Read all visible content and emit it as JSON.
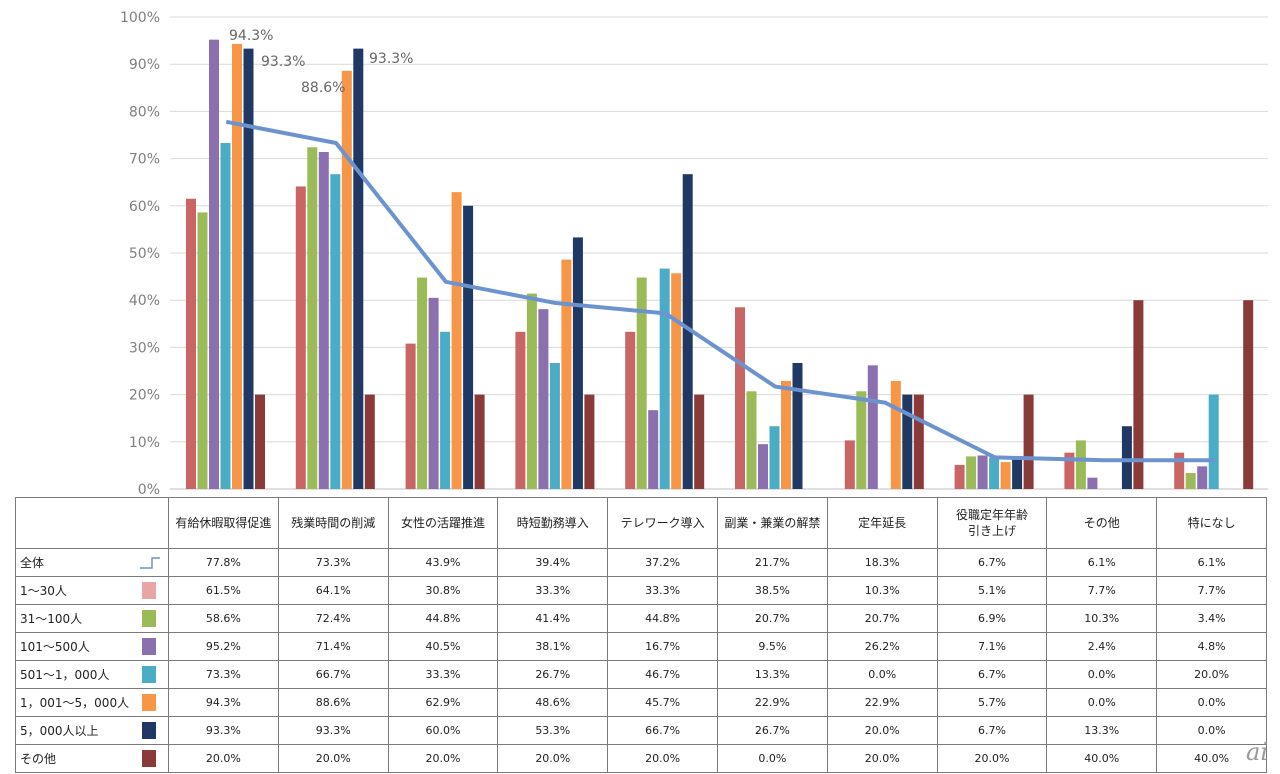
{
  "chart_data": {
    "type": "bar",
    "ylabel": "",
    "ylim": [
      0,
      100
    ],
    "y_ticks": [
      "0%",
      "10%",
      "20%",
      "30%",
      "40%",
      "50%",
      "60%",
      "70%",
      "80%",
      "90%",
      "100%"
    ],
    "categories": [
      "有給休暇取得促進",
      "残業時間の削減",
      "女性の活躍推進",
      "時短勤務導入",
      "テレワーク導入",
      "副業・兼業の解禁",
      "定年延長",
      "役職定年年齢引き上げ",
      "その他",
      "特になし"
    ],
    "category_lines": [
      [
        "有給休暇取得促進"
      ],
      [
        "残業時間の削減"
      ],
      [
        "女性の活躍推進"
      ],
      [
        "時短勤務導入"
      ],
      [
        "テレワーク導入"
      ],
      [
        "副業・兼業の解禁"
      ],
      [
        "定年延長"
      ],
      [
        "役職定年年齢",
        "引き上げ"
      ],
      [
        "その他"
      ],
      [
        "特になし"
      ]
    ],
    "line_series": {
      "name": "全体",
      "color": "#6d93cf",
      "values": [
        77.8,
        73.3,
        43.9,
        39.4,
        37.2,
        21.7,
        18.3,
        6.7,
        6.1,
        6.1
      ]
    },
    "series": [
      {
        "name": "1～30人",
        "color": "#c96565",
        "swatch": "#e8a5a5",
        "values": [
          61.5,
          64.1,
          30.8,
          33.3,
          33.3,
          38.5,
          10.3,
          5.1,
          7.7,
          7.7
        ]
      },
      {
        "name": "31～100人",
        "color": "#9bbb59",
        "values": [
          58.6,
          72.4,
          44.8,
          41.4,
          44.8,
          20.7,
          20.7,
          6.9,
          10.3,
          3.4
        ]
      },
      {
        "name": "101～500人",
        "color": "#8c6fae",
        "values": [
          95.2,
          71.4,
          40.5,
          38.1,
          16.7,
          9.5,
          26.2,
          7.1,
          2.4,
          4.8
        ]
      },
      {
        "name": "501～1，000人",
        "color": "#4bacc6",
        "values": [
          73.3,
          66.7,
          33.3,
          26.7,
          46.7,
          13.3,
          0.0,
          6.7,
          0.0,
          20.0
        ]
      },
      {
        "name": "1，001～5，000人",
        "color": "#f79646",
        "values": [
          94.3,
          88.6,
          62.9,
          48.6,
          45.7,
          22.9,
          22.9,
          5.7,
          0.0,
          0.0
        ]
      },
      {
        "name": "5，000人以上",
        "color": "#1f3864",
        "values": [
          93.3,
          93.3,
          60.0,
          53.3,
          66.7,
          26.7,
          20.0,
          6.7,
          13.3,
          0.0
        ]
      },
      {
        "name": "その他",
        "color": "#8b3a3a",
        "values": [
          20.0,
          20.0,
          20.0,
          20.0,
          20.0,
          0.0,
          20.0,
          20.0,
          40.0,
          40.0
        ]
      }
    ],
    "annotations": [
      "94.3%",
      "93.3%",
      "88.6%",
      "93.3%"
    ],
    "table_rows": [
      {
        "label": "全体",
        "cells": [
          "77.8%",
          "73.3%",
          "43.9%",
          "39.4%",
          "37.2%",
          "21.7%",
          "18.3%",
          "6.7%",
          "6.1%",
          "6.1%"
        ]
      },
      {
        "label": "1～30人",
        "cells": [
          "61.5%",
          "64.1%",
          "30.8%",
          "33.3%",
          "33.3%",
          "38.5%",
          "10.3%",
          "5.1%",
          "7.7%",
          "7.7%"
        ]
      },
      {
        "label": "31～100人",
        "cells": [
          "58.6%",
          "72.4%",
          "44.8%",
          "41.4%",
          "44.8%",
          "20.7%",
          "20.7%",
          "6.9%",
          "10.3%",
          "3.4%"
        ]
      },
      {
        "label": "101～500人",
        "cells": [
          "95.2%",
          "71.4%",
          "40.5%",
          "38.1%",
          "16.7%",
          "9.5%",
          "26.2%",
          "7.1%",
          "2.4%",
          "4.8%"
        ]
      },
      {
        "label": "501～1，000人",
        "cells": [
          "73.3%",
          "66.7%",
          "33.3%",
          "26.7%",
          "46.7%",
          "13.3%",
          "0.0%",
          "6.7%",
          "0.0%",
          "20.0%"
        ]
      },
      {
        "label": "1，001～5，000人",
        "cells": [
          "94.3%",
          "88.6%",
          "62.9%",
          "48.6%",
          "45.7%",
          "22.9%",
          "22.9%",
          "5.7%",
          "0.0%",
          "0.0%"
        ]
      },
      {
        "label": "5，000人以上",
        "cells": [
          "93.3%",
          "93.3%",
          "60.0%",
          "53.3%",
          "66.7%",
          "26.7%",
          "20.0%",
          "6.7%",
          "13.3%",
          "0.0%"
        ]
      },
      {
        "label": "その他",
        "cells": [
          "20.0%",
          "20.0%",
          "20.0%",
          "20.0%",
          "20.0%",
          "0.0%",
          "20.0%",
          "20.0%",
          "40.0%",
          "40.0%"
        ]
      }
    ]
  },
  "watermark": "ai"
}
